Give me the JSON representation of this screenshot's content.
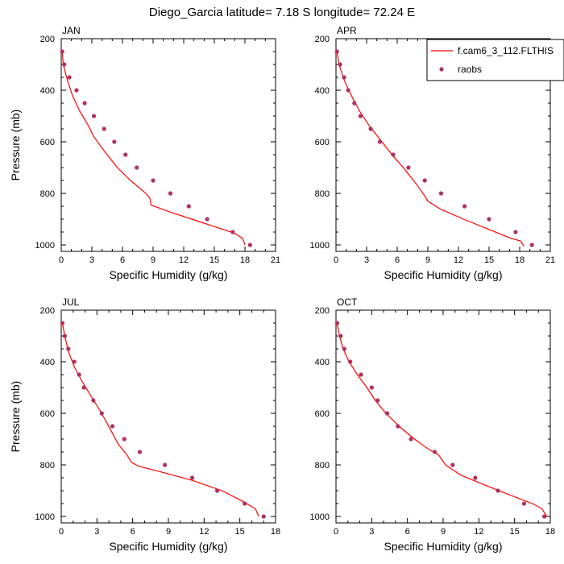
{
  "figure": {
    "title": "Diego_Garcia  latitude= 7.18 S longitude= 72.24 E"
  },
  "chart_data": [
    {
      "type": "line",
      "panel": "JAN",
      "title": "JAN",
      "xlabel": "Specific Humidity (g/kg)",
      "ylabel": "Pressure (mb)",
      "xlim": [
        0,
        21
      ],
      "ylim": [
        1025,
        200
      ],
      "xticks": [
        0,
        3,
        6,
        9,
        12,
        15,
        18,
        21
      ],
      "yticks": [
        200,
        400,
        600,
        800,
        1000
      ],
      "y_inverted": true,
      "series": [
        {
          "name": "f.cam6_3_112.FLTHIS",
          "kind": "line",
          "color": "#ff0000",
          "points": [
            [
              0.1,
              250
            ],
            [
              0.2,
              300
            ],
            [
              0.6,
              360
            ],
            [
              1.1,
              420
            ],
            [
              1.8,
              480
            ],
            [
              2.7,
              540
            ],
            [
              3.2,
              580
            ],
            [
              4.3,
              640
            ],
            [
              5.5,
              700
            ],
            [
              6.8,
              750
            ],
            [
              8.3,
              800
            ],
            [
              8.7,
              820
            ],
            [
              8.8,
              845
            ],
            [
              10.5,
              870
            ],
            [
              12.8,
              900
            ],
            [
              15.1,
              930
            ],
            [
              17.0,
              955
            ],
            [
              17.8,
              975
            ],
            [
              18.0,
              1000
            ]
          ]
        },
        {
          "name": "raobs",
          "kind": "markers",
          "color": "#b03060",
          "points": [
            [
              0.1,
              250
            ],
            [
              0.3,
              300
            ],
            [
              0.8,
              350
            ],
            [
              1.5,
              400
            ],
            [
              2.3,
              450
            ],
            [
              3.2,
              500
            ],
            [
              4.2,
              550
            ],
            [
              5.2,
              600
            ],
            [
              6.3,
              650
            ],
            [
              7.4,
              700
            ],
            [
              9.0,
              750
            ],
            [
              10.7,
              800
            ],
            [
              12.5,
              850
            ],
            [
              14.3,
              900
            ],
            [
              16.8,
              950
            ],
            [
              18.5,
              1000
            ]
          ]
        }
      ]
    },
    {
      "type": "line",
      "panel": "APR",
      "title": "APR",
      "xlabel": "Specific Humidity (g/kg)",
      "ylabel": "",
      "xlim": [
        0,
        21
      ],
      "ylim": [
        1025,
        200
      ],
      "xticks": [
        0,
        3,
        6,
        9,
        12,
        15,
        18,
        21
      ],
      "yticks": [
        200,
        400,
        600,
        800,
        1000
      ],
      "y_inverted": true,
      "legend": {
        "placement": "top-right",
        "entries": [
          "f.cam6_3_112.FLTHIS",
          "raobs"
        ]
      },
      "series": [
        {
          "name": "f.cam6_3_112.FLTHIS",
          "kind": "line",
          "color": "#ff0000",
          "points": [
            [
              0.1,
              250
            ],
            [
              0.3,
              300
            ],
            [
              0.8,
              360
            ],
            [
              1.5,
              420
            ],
            [
              2.3,
              480
            ],
            [
              3.3,
              540
            ],
            [
              4.5,
              600
            ],
            [
              5.7,
              660
            ],
            [
              6.6,
              700
            ],
            [
              7.8,
              760
            ],
            [
              8.7,
              810
            ],
            [
              9.0,
              830
            ],
            [
              10.2,
              860
            ],
            [
              12.5,
              900
            ],
            [
              15.0,
              940
            ],
            [
              17.2,
              975
            ],
            [
              18.1,
              985
            ],
            [
              18.4,
              1005
            ]
          ]
        },
        {
          "name": "raobs",
          "kind": "markers",
          "color": "#b03060",
          "points": [
            [
              0.1,
              250
            ],
            [
              0.4,
              300
            ],
            [
              0.8,
              350
            ],
            [
              1.2,
              400
            ],
            [
              1.8,
              450
            ],
            [
              2.4,
              500
            ],
            [
              3.4,
              550
            ],
            [
              4.3,
              600
            ],
            [
              5.6,
              650
            ],
            [
              7.1,
              700
            ],
            [
              8.7,
              750
            ],
            [
              10.3,
              800
            ],
            [
              12.6,
              850
            ],
            [
              15.0,
              900
            ],
            [
              17.6,
              950
            ],
            [
              19.2,
              1000
            ]
          ]
        }
      ]
    },
    {
      "type": "line",
      "panel": "JUL",
      "title": "JUL",
      "xlabel": "Specific Humidity (g/kg)",
      "ylabel": "Pressure (mb)",
      "xlim": [
        0,
        18
      ],
      "ylim": [
        1025,
        200
      ],
      "xticks": [
        0,
        3,
        6,
        9,
        12,
        15,
        18
      ],
      "yticks": [
        200,
        400,
        600,
        800,
        1000
      ],
      "y_inverted": true,
      "series": [
        {
          "name": "f.cam6_3_112.FLTHIS",
          "kind": "line",
          "color": "#ff0000",
          "points": [
            [
              0.1,
              250
            ],
            [
              0.3,
              300
            ],
            [
              0.6,
              360
            ],
            [
              1.1,
              420
            ],
            [
              1.8,
              480
            ],
            [
              2.6,
              540
            ],
            [
              3.4,
              600
            ],
            [
              4.1,
              660
            ],
            [
              4.8,
              720
            ],
            [
              5.5,
              760
            ],
            [
              5.9,
              790
            ],
            [
              6.5,
              805
            ],
            [
              8.6,
              830
            ],
            [
              11.0,
              860
            ],
            [
              13.5,
              900
            ],
            [
              15.2,
              940
            ],
            [
              16.3,
              970
            ],
            [
              16.6,
              1000
            ]
          ]
        },
        {
          "name": "raobs",
          "kind": "markers",
          "color": "#b03060",
          "points": [
            [
              0.1,
              250
            ],
            [
              0.3,
              300
            ],
            [
              0.6,
              350
            ],
            [
              1.1,
              400
            ],
            [
              1.5,
              450
            ],
            [
              1.9,
              500
            ],
            [
              2.7,
              550
            ],
            [
              3.4,
              600
            ],
            [
              4.3,
              650
            ],
            [
              5.3,
              700
            ],
            [
              6.6,
              750
            ],
            [
              8.7,
              800
            ],
            [
              11.0,
              850
            ],
            [
              13.1,
              900
            ],
            [
              15.4,
              950
            ],
            [
              17.0,
              1000
            ]
          ]
        }
      ]
    },
    {
      "type": "line",
      "panel": "OCT",
      "title": "OCT",
      "xlabel": "Specific Humidity (g/kg)",
      "ylabel": "",
      "xlim": [
        0,
        18
      ],
      "ylim": [
        1025,
        200
      ],
      "xticks": [
        0,
        3,
        6,
        9,
        12,
        15,
        18
      ],
      "yticks": [
        200,
        400,
        600,
        800,
        1000
      ],
      "y_inverted": true,
      "series": [
        {
          "name": "f.cam6_3_112.FLTHIS",
          "kind": "line",
          "color": "#ff0000",
          "points": [
            [
              0.1,
              250
            ],
            [
              0.3,
              300
            ],
            [
              0.6,
              350
            ],
            [
              1.1,
              400
            ],
            [
              1.8,
              450
            ],
            [
              2.6,
              500
            ],
            [
              3.3,
              550
            ],
            [
              4.2,
              600
            ],
            [
              5.3,
              650
            ],
            [
              6.6,
              700
            ],
            [
              7.8,
              740
            ],
            [
              8.6,
              760
            ],
            [
              9.2,
              800
            ],
            [
              10.5,
              840
            ],
            [
              12.6,
              880
            ],
            [
              14.8,
              920
            ],
            [
              16.5,
              950
            ],
            [
              17.3,
              970
            ],
            [
              17.7,
              1000
            ]
          ]
        },
        {
          "name": "raobs",
          "kind": "markers",
          "color": "#b03060",
          "points": [
            [
              0.1,
              250
            ],
            [
              0.4,
              300
            ],
            [
              0.7,
              350
            ],
            [
              1.2,
              400
            ],
            [
              2.1,
              450
            ],
            [
              3.0,
              500
            ],
            [
              3.5,
              550
            ],
            [
              4.3,
              600
            ],
            [
              5.2,
              650
            ],
            [
              6.3,
              700
            ],
            [
              8.3,
              750
            ],
            [
              9.8,
              800
            ],
            [
              11.7,
              850
            ],
            [
              13.6,
              900
            ],
            [
              15.8,
              950
            ],
            [
              17.5,
              1000
            ]
          ]
        }
      ]
    }
  ]
}
